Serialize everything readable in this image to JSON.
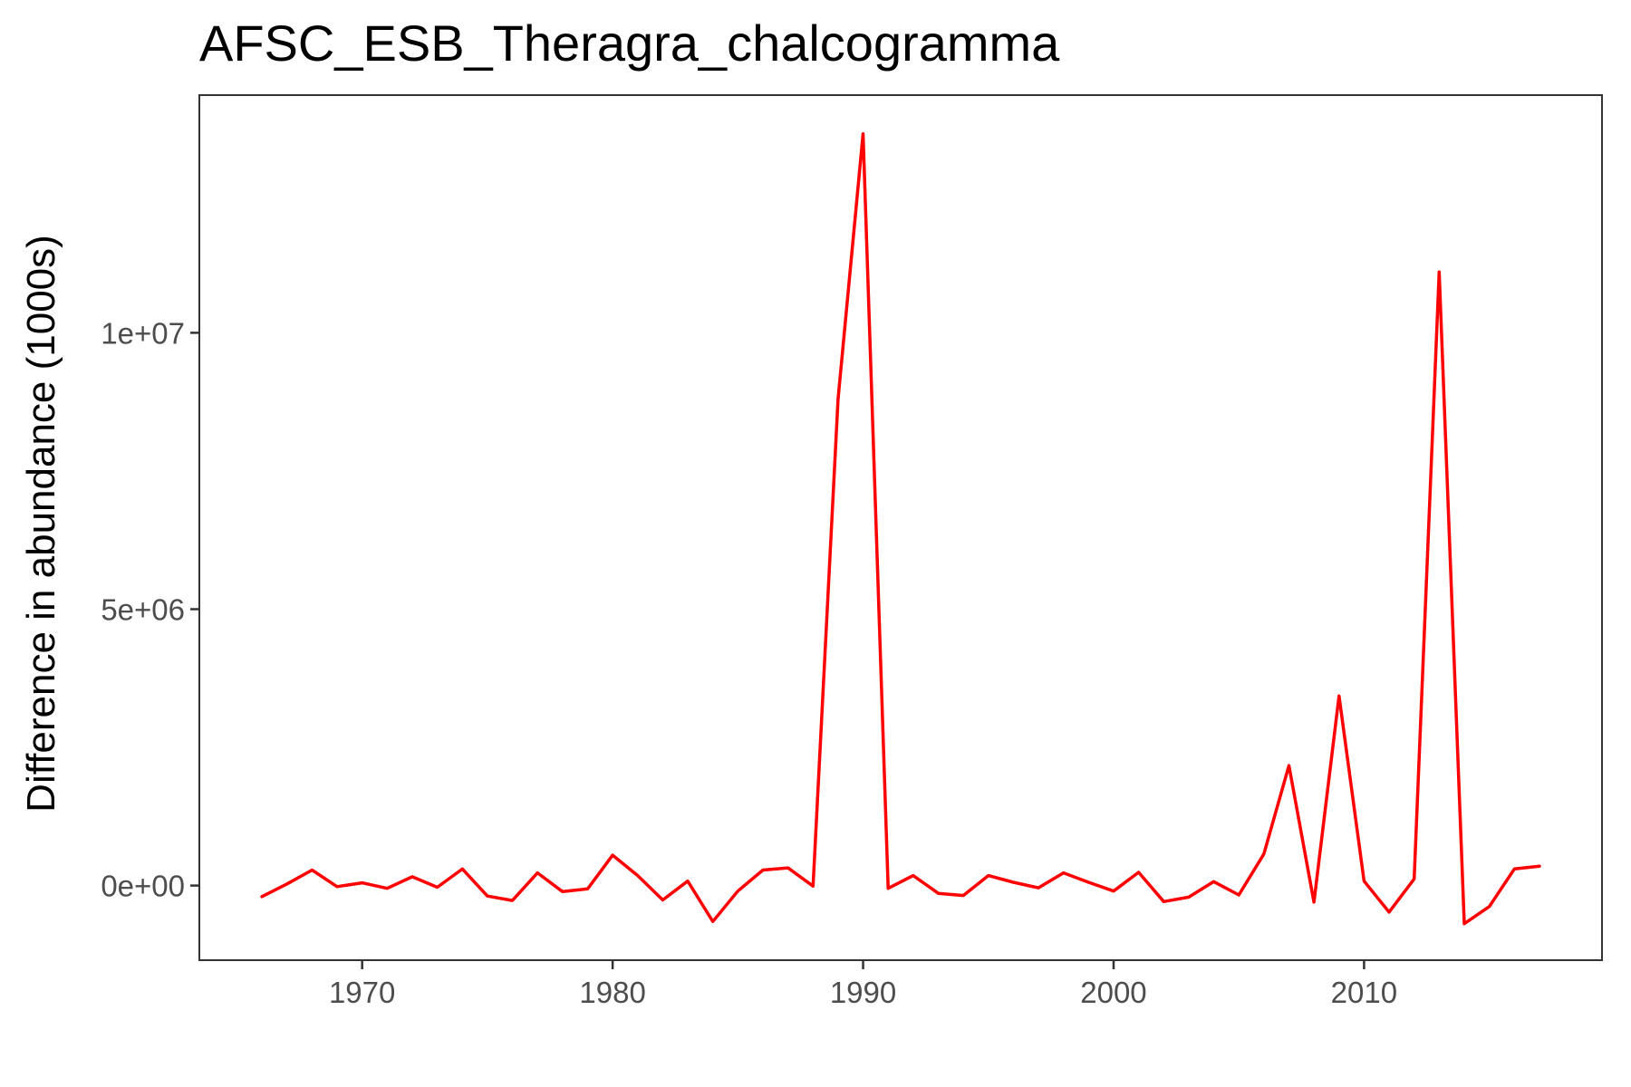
{
  "chart_data": {
    "type": "line",
    "title": "AFSC_ESB_Theragra_chalcogramma",
    "xlabel": "",
    "ylabel": "Difference in abundance (1000s)",
    "xlim": [
      1963.5,
      2019.5
    ],
    "ylim": [
      -1350000,
      14300000
    ],
    "x_ticks": [
      1970,
      1980,
      1990,
      2000,
      2010
    ],
    "x_tick_labels": [
      "1970",
      "1980",
      "1990",
      "2000",
      "2010"
    ],
    "y_ticks": [
      0,
      5000000,
      10000000
    ],
    "y_tick_labels": [
      "0e+00",
      "5e+06",
      "1e+07"
    ],
    "grid": false,
    "legend": "none",
    "line_color": "#ff0000",
    "series": [
      {
        "x": [
          1966,
          1967,
          1968,
          1969,
          1970,
          1971,
          1972,
          1973,
          1974,
          1975,
          1976,
          1977,
          1978,
          1979,
          1980,
          1981,
          1982,
          1983,
          1984,
          1985,
          1986,
          1987,
          1988,
          1989,
          1990,
          1991,
          1992,
          1993,
          1994,
          1995,
          1996,
          1997,
          1998,
          1999,
          2000,
          2001,
          2002,
          2003,
          2004,
          2005,
          2006,
          2007,
          2008,
          2009,
          2010,
          2011,
          2012,
          2013,
          2014,
          2015,
          2016,
          2017
        ],
        "values": [
          -200000,
          30000,
          280000,
          -20000,
          50000,
          -50000,
          160000,
          -30000,
          300000,
          -190000,
          -270000,
          230000,
          -110000,
          -60000,
          550000,
          180000,
          -260000,
          80000,
          -650000,
          -100000,
          280000,
          320000,
          -10000,
          8800000,
          13600000,
          -50000,
          180000,
          -140000,
          -180000,
          180000,
          60000,
          -40000,
          230000,
          60000,
          -100000,
          240000,
          -290000,
          -210000,
          70000,
          -170000,
          570000,
          2170000,
          -300000,
          3430000,
          80000,
          -480000,
          120000,
          11100000,
          -690000,
          -380000,
          300000,
          350000
        ]
      }
    ]
  }
}
